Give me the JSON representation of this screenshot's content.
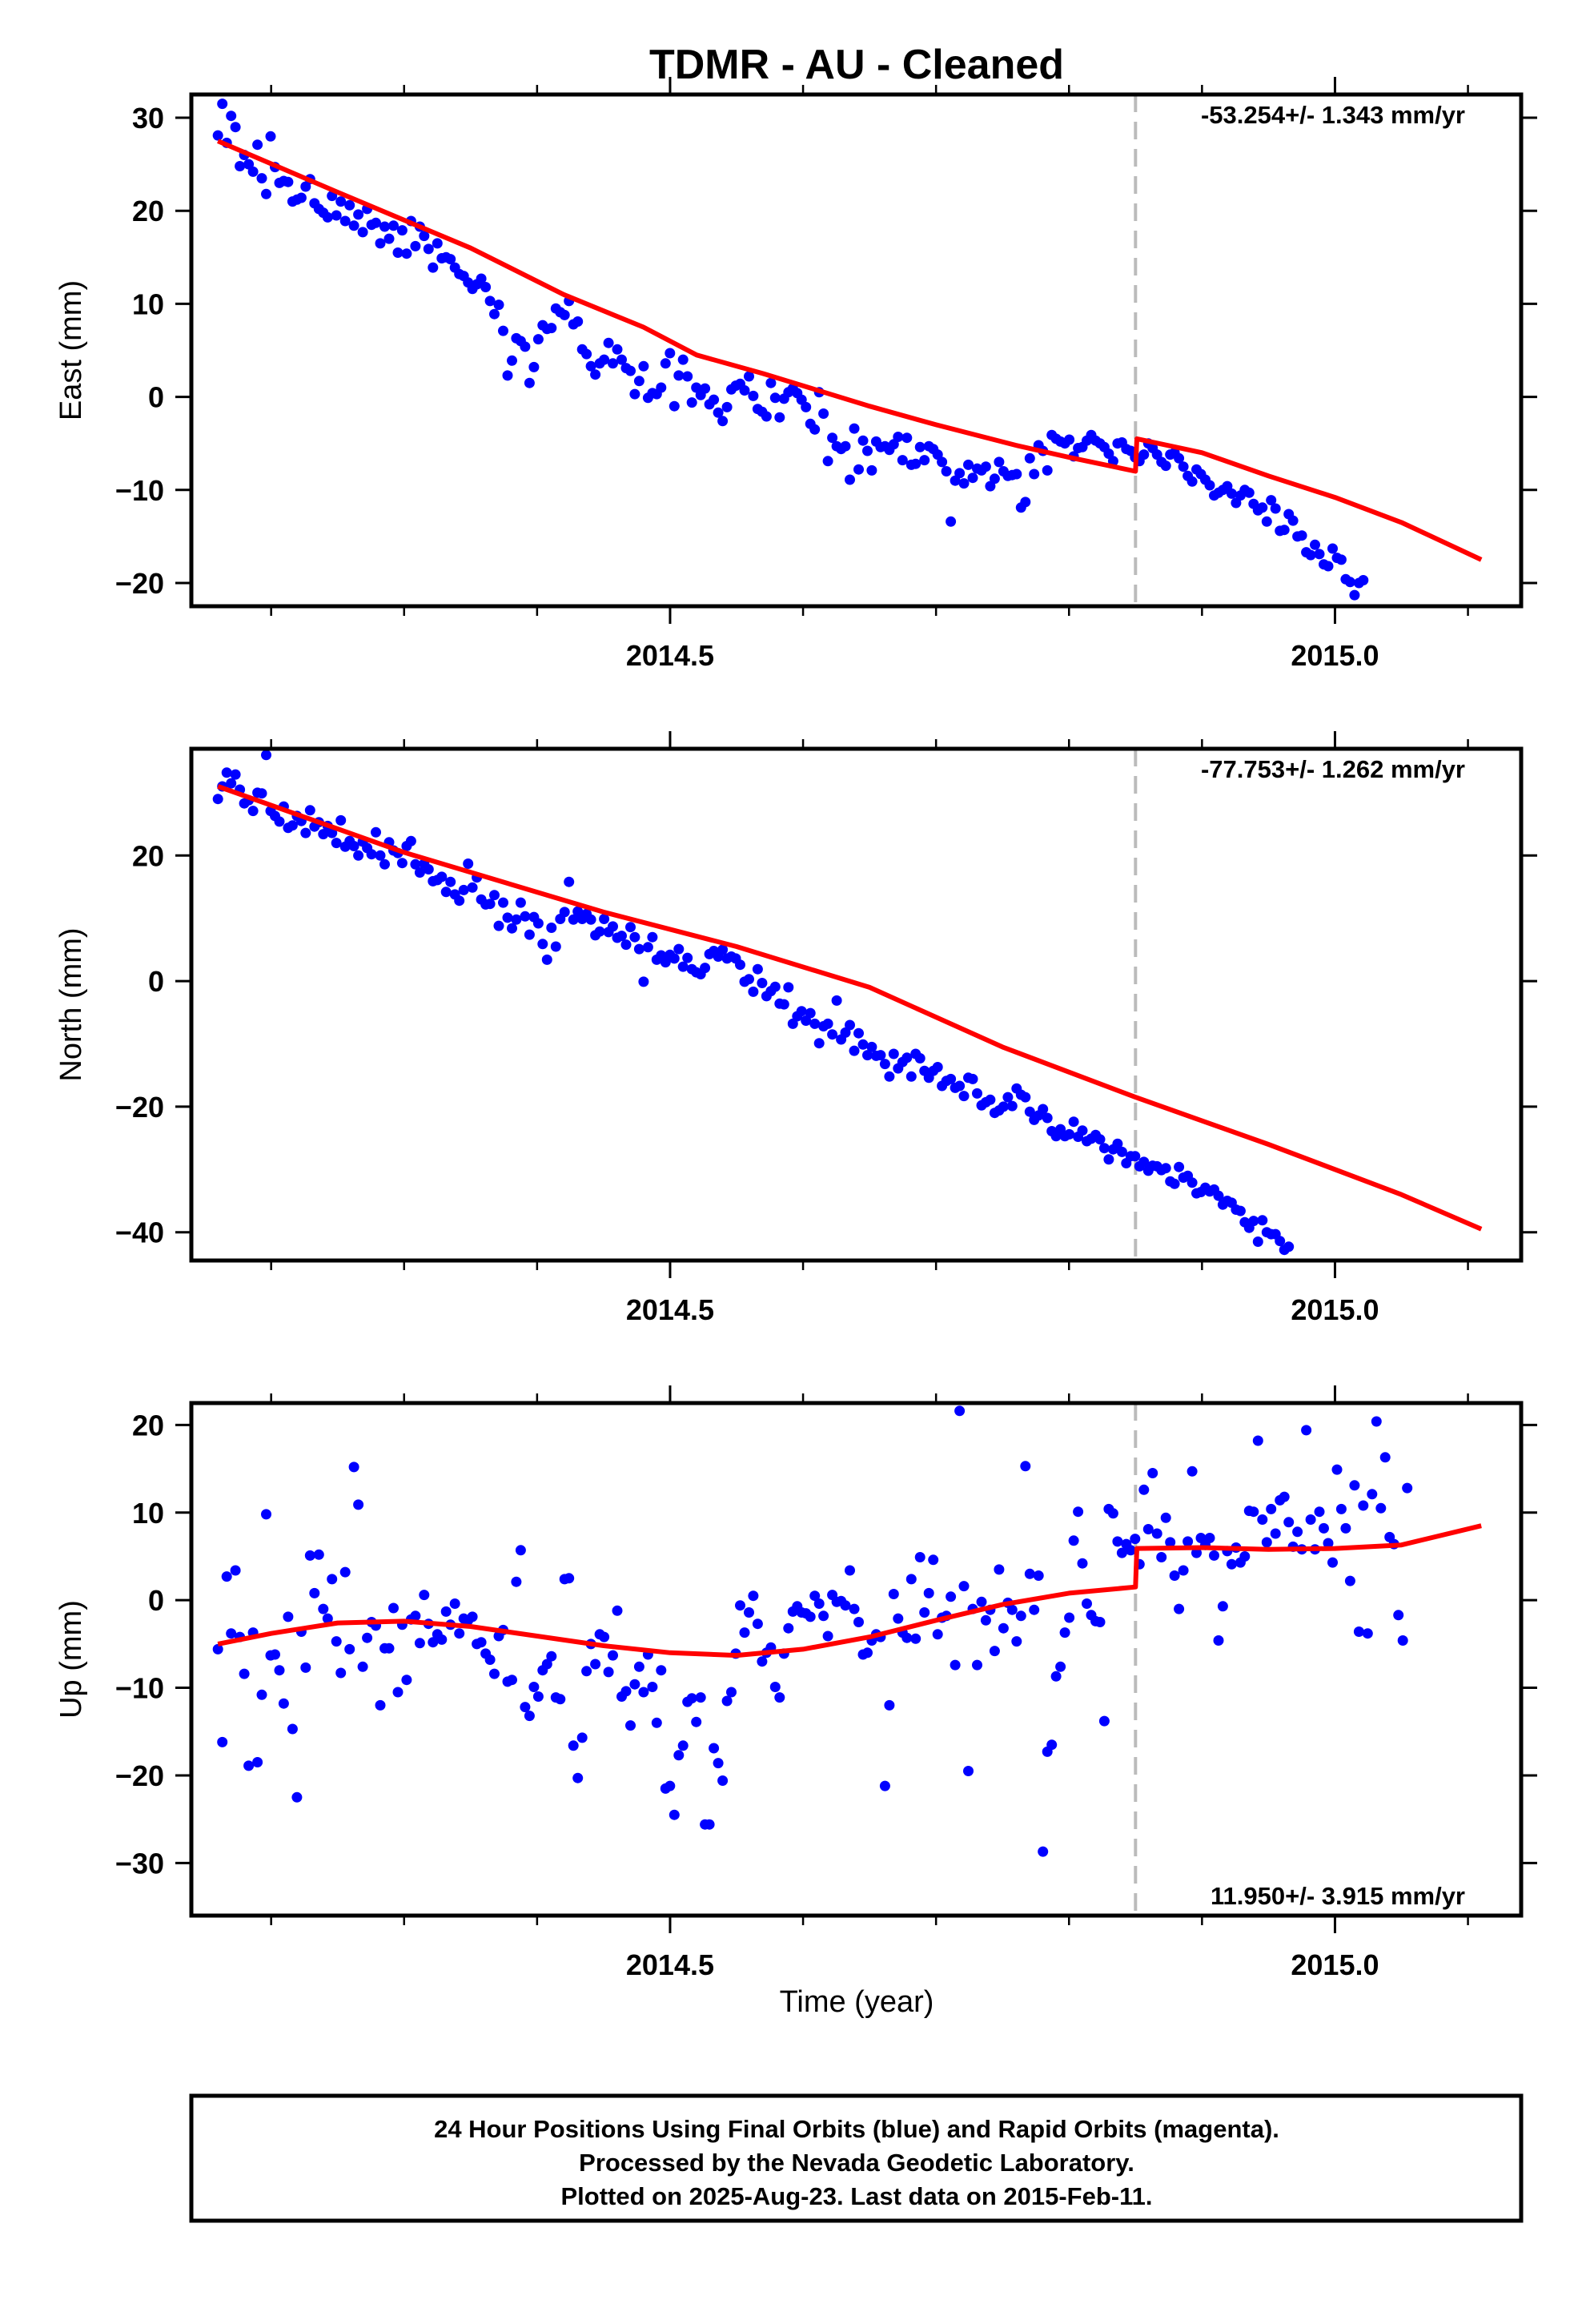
{
  "title": "TDMR  - AU - Cleaned",
  "xlabel": "Time (year)",
  "footer": {
    "line1": "24 Hour Positions Using Final Orbits (blue) and Rapid Orbits (magenta).",
    "line2": "Processed by the Nevada Geodetic Laboratory.",
    "line3": "Plotted on 2025-Aug-23. Last data on 2015-Feb-11."
  },
  "colors": {
    "points": "#0000ff",
    "fit": "#ff0000",
    "break_line": "#bbbbbb",
    "frame": "#000000"
  },
  "chart_data": [
    {
      "type": "scatter",
      "component": "east",
      "ylabel": "East (mm)",
      "rate_label": "-53.254+/- 1.343 mm/yr",
      "rate_position": "top-right",
      "xlim": [
        2014.14,
        2015.14
      ],
      "ylim": [
        -22.5,
        32.5
      ],
      "xticks": [
        2014.5,
        2015.0
      ],
      "xtick_labels": [
        "2014.5",
        "2015.0"
      ],
      "yticks": [
        30,
        20,
        10,
        0,
        -10,
        -20
      ],
      "ytick_labels": [
        "30",
        "20",
        "10",
        "0",
        "−10",
        "−20"
      ],
      "break_x": 2014.85,
      "observations": {
        "x_start": 2014.16,
        "x_step": 0.0033,
        "y": [
          28.1,
          31.5,
          27.3,
          30.2,
          29.0,
          24.8,
          26.0,
          25.0,
          24.2,
          27.1,
          23.5,
          21.8,
          28.0,
          24.7,
          23.0,
          23.2,
          23.1,
          21.0,
          21.2,
          21.4,
          22.6,
          23.4,
          20.8,
          20.2,
          19.8,
          19.3,
          21.6,
          19.5,
          21.0,
          18.9,
          20.6,
          18.4,
          19.6,
          17.7,
          20.2,
          18.5,
          18.7,
          16.5,
          18.3,
          17.0,
          18.4,
          15.5,
          17.9,
          15.4,
          18.9,
          16.2,
          18.3,
          17.3,
          15.9,
          13.9,
          16.5,
          14.9,
          15.0,
          14.8,
          13.9,
          13.2,
          13.0,
          12.3,
          11.6,
          12.1,
          12.7,
          11.8,
          10.3,
          8.9,
          9.9,
          7.1,
          2.3,
          3.9,
          6.3,
          6.0,
          5.4,
          1.5,
          3.2,
          6.2,
          7.7,
          7.3,
          7.4,
          9.5,
          9.1,
          8.8,
          10.3,
          7.8,
          8.1,
          5.1,
          4.6,
          3.3,
          2.4,
          3.6,
          4.0,
          5.8,
          3.6,
          5.1,
          4.0,
          3.1,
          2.8,
          0.3,
          1.7,
          3.3,
          -0.1,
          0.4,
          0.3,
          1.0,
          3.6,
          4.7,
          -1.0,
          2.3,
          4.0,
          2.2,
          -0.6,
          1.0,
          0.2,
          0.9,
          -0.8,
          -0.3,
          -1.7,
          -2.6,
          -1.1,
          0.8,
          1.2,
          1.4,
          0.7,
          2.2,
          0.1,
          -1.3,
          -1.6,
          -2.1,
          1.5,
          -0.1,
          -2.2,
          -0.2,
          0.5,
          0.9,
          0.4,
          -0.3,
          -1.1,
          -2.9,
          -3.5,
          0.5,
          -1.8,
          -6.9,
          -4.4,
          -5.3,
          -5.6,
          -5.3,
          -8.9,
          -3.4,
          -7.8,
          -4.7,
          -5.8,
          -7.9,
          -4.8,
          -5.4,
          -5.3,
          -5.7,
          -5.1,
          -4.3,
          -6.8,
          -4.4,
          -7.3,
          -7.2,
          -5.4,
          -6.8,
          -5.3,
          -5.6,
          -6.2,
          -7.0,
          -8.0,
          -13.4,
          -9.0,
          -8.2,
          -9.3,
          -7.3,
          -8.7,
          -7.7,
          -7.9,
          -7.5,
          -9.6,
          -8.8,
          -7.0,
          -8.0,
          -8.5,
          -8.4,
          -8.3,
          -11.9,
          -11.3,
          -6.6,
          -8.3,
          -5.2,
          -5.8,
          -7.9,
          -4.1,
          -4.5,
          -4.8,
          -5.0,
          -4.6,
          -6.4,
          -5.5,
          -5.4,
          -4.7,
          -4.1,
          -4.7,
          -5.0,
          -5.4,
          -6.1,
          -6.9,
          -5.0,
          -4.9,
          -5.6,
          -5.8,
          -6.5,
          -6.9,
          -6.2,
          -5.0,
          -5.5,
          -6.2,
          -7.0,
          -7.4,
          -6.2,
          -6.0,
          -6.6,
          -7.5,
          -8.5,
          -9.1,
          -7.8,
          -8.3,
          -8.9,
          -9.5,
          -10.6,
          -10.3,
          -10.0,
          -9.6,
          -10.4,
          -11.4,
          -10.6,
          -10.0,
          -10.3,
          -11.5,
          -12.2,
          -11.9,
          -13.4,
          -11.1,
          -12.0,
          -14.4,
          -14.3,
          -12.6,
          -13.3,
          -15.0,
          -14.9,
          -16.7,
          -17.0,
          -15.9,
          -16.9,
          -18.0,
          -18.2,
          -16.3,
          -17.3,
          -17.5,
          -19.6,
          -19.9,
          -21.3,
          -20.0,
          -19.7
        ]
      },
      "fit": {
        "x": [
          2014.16,
          2014.25,
          2014.35,
          2014.42,
          2014.48,
          2014.52,
          2014.57,
          2014.65,
          2014.7,
          2014.76,
          2014.8,
          2014.85,
          2014.851,
          2014.9,
          2014.95,
          2015.0,
          2015.05,
          2015.11
        ],
        "y": [
          27.5,
          22.0,
          16.0,
          11.0,
          7.5,
          4.5,
          2.5,
          -1.0,
          -3.0,
          -5.2,
          -6.5,
          -8.0,
          -4.5,
          -6.0,
          -8.5,
          -10.8,
          -13.5,
          -17.5
        ]
      }
    },
    {
      "type": "scatter",
      "component": "north",
      "ylabel": "North (mm)",
      "rate_label": "-77.753+/- 1.262 mm/yr",
      "rate_position": "top-right",
      "xlim": [
        2014.14,
        2015.14
      ],
      "ylim": [
        -44.5,
        37.0
      ],
      "xticks": [
        2014.5,
        2015.0
      ],
      "xtick_labels": [
        "2014.5",
        "2015.0"
      ],
      "yticks": [
        20,
        0,
        -20,
        -40
      ],
      "ytick_labels": [
        "20",
        "0",
        "−20",
        "−40"
      ],
      "break_x": 2014.85,
      "observations": {
        "x_start": 2014.16,
        "x_step": 0.0033,
        "y": [
          29.0,
          31.0,
          33.2,
          31.5,
          32.9,
          30.5,
          28.3,
          28.8,
          27.1,
          30.0,
          29.9,
          36.0,
          27.1,
          26.3,
          25.4,
          27.8,
          24.4,
          24.8,
          26.3,
          25.5,
          23.6,
          27.2,
          24.6,
          25.3,
          23.4,
          24.7,
          23.6,
          22.0,
          25.6,
          21.4,
          22.3,
          21.5,
          20.0,
          22.2,
          21.2,
          20.2,
          23.7,
          20.0,
          18.6,
          22.1,
          20.8,
          20.4,
          18.8,
          21.5,
          22.3,
          18.6,
          17.3,
          18.7,
          17.8,
          15.9,
          16.1,
          16.6,
          14.2,
          15.8,
          13.8,
          12.8,
          14.5,
          18.7,
          14.9,
          16.5,
          13.0,
          12.2,
          12.3,
          13.7,
          8.8,
          12.5,
          10.1,
          8.4,
          9.8,
          12.5,
          10.3,
          7.4,
          10.2,
          9.2,
          5.9,
          3.4,
          8.5,
          5.5,
          9.9,
          11.0,
          15.8,
          9.8,
          11.1,
          9.9,
          10.7,
          9.8,
          7.3,
          7.9,
          9.9,
          7.8,
          8.7,
          6.9,
          7.2,
          5.8,
          8.6,
          7.0,
          5.1,
          -0.1,
          5.4,
          7.0,
          3.4,
          4.1,
          3.0,
          4.2,
          3.6,
          5.1,
          2.3,
          3.7,
          1.9,
          1.4,
          1.1,
          2.1,
          4.3,
          4.8,
          3.9,
          5.0,
          3.6,
          3.9,
          3.6,
          2.6,
          -0.1,
          0.3,
          -1.7,
          1.9,
          -0.3,
          -2.4,
          -1.6,
          -0.9,
          -3.6,
          -3.7,
          -1.0,
          -6.8,
          -5.6,
          -4.8,
          -6.3,
          -5.1,
          -6.8,
          -9.9,
          -7.2,
          -6.8,
          -8.5,
          -3.1,
          -9.3,
          -8.2,
          -7.0,
          -11.1,
          -8.3,
          -10.1,
          -11.8,
          -10.5,
          -11.9,
          -11.8,
          -13.2,
          -15.2,
          -11.6,
          -13.9,
          -12.9,
          -12.2,
          -15.2,
          -11.6,
          -12.3,
          -14.3,
          -15.4,
          -14.3,
          -13.7,
          -16.7,
          -15.9,
          -15.6,
          -17.0,
          -16.7,
          -18.3,
          -15.4,
          -15.6,
          -17.9,
          -19.8,
          -19.3,
          -18.9,
          -21.0,
          -20.6,
          -20.0,
          -18.5,
          -19.9,
          -17.1,
          -18.1,
          -18.5,
          -20.8,
          -22.1,
          -21.4,
          -20.4,
          -21.8,
          -23.9,
          -24.7,
          -23.6,
          -24.7,
          -24.4,
          -22.4,
          -24.8,
          -23.8,
          -25.5,
          -25.1,
          -24.5,
          -25.2,
          -26.6,
          -28.4,
          -26.8,
          -25.9,
          -27.2,
          -29.0,
          -27.9,
          -27.9,
          -29.5,
          -28.8,
          -30.2,
          -29.4,
          -29.5,
          -30.1,
          -29.8,
          -31.9,
          -32.3,
          -29.6,
          -31.3,
          -31.0,
          -32.1,
          -33.8,
          -33.6,
          -32.9,
          -33.5,
          -33.2,
          -34.2,
          -35.6,
          -35.0,
          -35.3,
          -36.4,
          -36.6,
          -38.4,
          -39.3,
          -38.2,
          -41.5,
          -38.1,
          -40.0,
          -40.3,
          -40.3,
          -41.4,
          -42.8,
          -42.3
        ]
      },
      "fit": {
        "x": [
          2014.16,
          2014.3,
          2014.45,
          2014.55,
          2014.65,
          2014.75,
          2014.85,
          2014.95,
          2015.05,
          2015.11
        ],
        "y": [
          31.0,
          20.5,
          11.0,
          5.5,
          -1.0,
          -10.5,
          -18.5,
          -26.0,
          -34.0,
          -39.5
        ]
      }
    },
    {
      "type": "scatter",
      "component": "up",
      "ylabel": "Up (mm)",
      "rate_label": "11.950+/- 3.915 mm/yr",
      "rate_position": "bottom-right",
      "xlim": [
        2014.14,
        2015.14
      ],
      "ylim": [
        -36.0,
        22.5
      ],
      "xticks": [
        2014.5,
        2015.0
      ],
      "xtick_labels": [
        "2014.5",
        "2015.0"
      ],
      "yticks": [
        20,
        10,
        0,
        -10,
        -20,
        -30
      ],
      "ytick_labels": [
        "20",
        "10",
        "0",
        "−10",
        "−20",
        "−30"
      ],
      "break_x": 2014.85,
      "observations": {
        "x_start": 2014.16,
        "x_step": 0.0033,
        "y": [
          -5.6,
          -16.2,
          2.7,
          -3.8,
          3.4,
          -4.2,
          -8.4,
          -18.9,
          -3.7,
          -18.5,
          -10.8,
          9.8,
          -6.3,
          -6.2,
          -8.0,
          -11.8,
          -1.9,
          -14.7,
          -22.5,
          -3.6,
          -7.7,
          5.1,
          0.8,
          5.2,
          -1.0,
          -2.1,
          2.4,
          -4.7,
          -8.3,
          3.2,
          -5.6,
          15.2,
          10.9,
          -7.6,
          -4.3,
          -2.5,
          -2.9,
          -12.0,
          -5.5,
          -5.5,
          -0.9,
          -10.5,
          -2.8,
          -9.1,
          -2.2,
          -1.8,
          -4.9,
          0.6,
          -2.7,
          -4.8,
          -3.9,
          -4.5,
          -1.3,
          -2.8,
          -0.4,
          -3.8,
          -2.1,
          -2.3,
          -1.9,
          -5.0,
          -4.8,
          -6.1,
          -6.8,
          -8.4,
          -4.1,
          -3.4,
          -9.3,
          -9.1,
          2.1,
          5.7,
          -12.2,
          -13.2,
          -9.9,
          -11.0,
          -8.0,
          -7.3,
          -6.4,
          -11.1,
          -11.3,
          2.4,
          2.5,
          -16.6,
          -20.3,
          -15.7,
          -8.1,
          -5.0,
          -7.3,
          -3.9,
          -4.2,
          -8.2,
          -6.3,
          -1.2,
          -11.0,
          -10.4,
          -14.3,
          -9.6,
          -7.6,
          -10.5,
          -6.2,
          -9.9,
          -14.0,
          -8.0,
          -21.5,
          -21.2,
          -24.5,
          -17.7,
          -16.6,
          -11.6,
          -11.2,
          -13.9,
          -11.1,
          -25.6,
          -25.6,
          -16.9,
          -18.6,
          -20.6,
          -11.5,
          -10.5,
          -6.1,
          -0.6,
          -3.7,
          -1.4,
          0.5,
          -2.7,
          -7.0,
          -6.0,
          -5.4,
          -9.9,
          -11.1,
          -6.1,
          -3.2,
          -1.3,
          -0.7,
          -1.4,
          -1.5,
          -1.9,
          0.5,
          -0.4,
          -1.8,
          -4.1,
          0.6,
          -0.2,
          -0.1,
          -0.6,
          3.4,
          -1.0,
          -2.5,
          -6.2,
          -6.0,
          -4.6,
          -3.9,
          -4.2,
          -21.2,
          -12.0,
          0.7,
          -2.1,
          -3.7,
          -4.3,
          2.4,
          -4.4,
          4.9,
          -1.4,
          0.8,
          4.6,
          -3.9,
          -2.0,
          -1.8,
          0.4,
          -7.4,
          21.6,
          1.6,
          -19.5,
          -1.0,
          -7.4,
          -0.2,
          -2.3,
          -1.1,
          -5.8,
          3.5,
          -3.2,
          -0.3,
          -1.1,
          -4.7,
          -1.8,
          15.3,
          3.0,
          -1.1,
          2.8,
          -28.7,
          -17.3,
          -16.5,
          -8.7,
          -7.6,
          -3.7,
          -2.0,
          6.8,
          10.1,
          4.2,
          -0.4,
          -1.7,
          -2.4,
          -2.5,
          -13.8,
          10.4,
          9.9,
          6.7,
          5.4,
          6.4,
          5.7,
          7.0,
          4.1,
          12.6,
          8.1,
          14.5,
          7.6,
          4.9,
          9.4,
          6.6,
          2.8,
          -1.0,
          3.4,
          6.7,
          14.7,
          5.4,
          7.1,
          6.3,
          7.1,
          5.1,
          -4.6,
          -0.7,
          5.6,
          4.1,
          6.0,
          4.3,
          5.0,
          10.2,
          10.1,
          18.2,
          9.2,
          6.6,
          10.4,
          7.6,
          11.4,
          11.8,
          8.9,
          6.1,
          7.8,
          5.8,
          19.4,
          9.2,
          5.8,
          10.1,
          8.2,
          6.5,
          4.3,
          14.9,
          10.4,
          8.2,
          2.2,
          13.1,
          -3.6,
          10.8,
          -3.8,
          12.1,
          20.4,
          10.5,
          16.3,
          7.2,
          6.4,
          -1.7,
          -4.6,
          12.8
        ]
      },
      "fit": {
        "x": [
          2014.16,
          2014.2,
          2014.25,
          2014.3,
          2014.35,
          2014.4,
          2014.45,
          2014.5,
          2014.55,
          2014.6,
          2014.65,
          2014.7,
          2014.75,
          2014.8,
          2014.85,
          2014.851,
          2014.9,
          2014.95,
          2015.0,
          2015.05,
          2015.11
        ],
        "y": [
          -5.0,
          -3.8,
          -2.6,
          -2.4,
          -3.0,
          -4.1,
          -5.2,
          -6.0,
          -6.3,
          -5.6,
          -4.2,
          -2.3,
          -0.5,
          0.8,
          1.5,
          5.9,
          6.0,
          5.8,
          5.9,
          6.3,
          8.5
        ]
      }
    }
  ]
}
